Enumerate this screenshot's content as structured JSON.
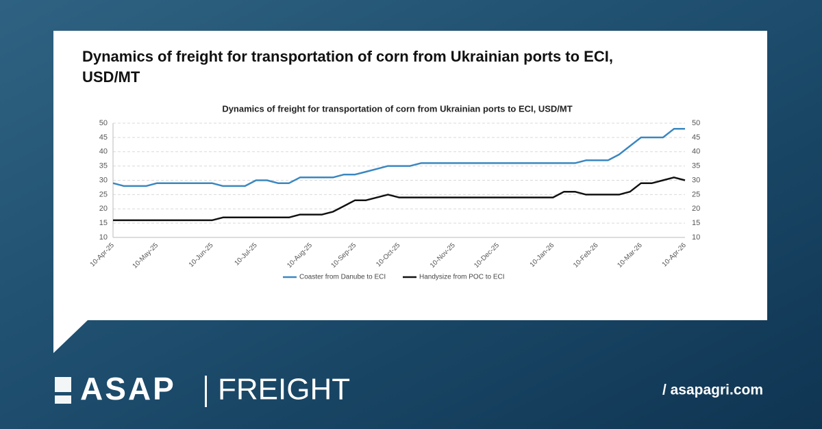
{
  "header": {
    "title": "Dynamics of freight for transportation of corn from Ukrainian ports to ECI, USD/MT"
  },
  "footer": {
    "brand": "ASAP",
    "division": "FREIGHT",
    "url": "/ asapagri.com"
  },
  "chart_data": {
    "type": "line",
    "title": "Dynamics of freight for transportation of corn from Ukrainian ports to ECI, USD/MT",
    "categories": [
      "10-Apr-25",
      null,
      null,
      null,
      "10-May-25",
      null,
      null,
      null,
      null,
      "10-Jun-25",
      null,
      null,
      null,
      "10-Jul-25",
      null,
      null,
      null,
      null,
      "10-Aug-25",
      null,
      null,
      null,
      "10-Sep-25",
      null,
      null,
      null,
      "10-Oct-25",
      null,
      null,
      null,
      null,
      "10-Nov-25",
      null,
      null,
      null,
      "10-Dec-25",
      null,
      null,
      null,
      null,
      "10-Jan-26",
      null,
      null,
      null,
      "10-Feb-26",
      null,
      null,
      null,
      "10-Mar-26",
      null,
      null,
      null,
      "10-Apr-26"
    ],
    "series": [
      {
        "name": "Coaster from Danube to ECI",
        "color": "#3a87c0",
        "values": [
          29,
          28,
          28,
          28,
          29,
          29,
          29,
          29,
          29,
          29,
          28,
          28,
          28,
          30,
          30,
          29,
          29,
          31,
          31,
          31,
          31,
          32,
          32,
          33,
          34,
          35,
          35,
          35,
          36,
          36,
          36,
          36,
          36,
          36,
          36,
          36,
          36,
          36,
          36,
          36,
          36,
          36,
          36,
          37,
          37,
          37,
          39,
          42,
          45,
          45,
          45,
          48,
          48
        ]
      },
      {
        "name": "Handysize from POC to ECI",
        "color": "#111111",
        "values": [
          16,
          16,
          16,
          16,
          16,
          16,
          16,
          16,
          16,
          16,
          17,
          17,
          17,
          17,
          17,
          17,
          17,
          18,
          18,
          18,
          19,
          21,
          23,
          23,
          24,
          25,
          24,
          24,
          24,
          24,
          24,
          24,
          24,
          24,
          24,
          24,
          24,
          24,
          24,
          24,
          24,
          26,
          26,
          25,
          25,
          25,
          25,
          26,
          29,
          29,
          30,
          31,
          30
        ]
      }
    ],
    "ylim": [
      10,
      50
    ],
    "yticks": [
      10,
      15,
      20,
      25,
      30,
      35,
      40,
      45,
      50
    ],
    "y2lim": [
      10,
      50
    ],
    "y2ticks": [
      10,
      15,
      20,
      25,
      30,
      35,
      40,
      45,
      50
    ],
    "grid": true,
    "legend": "bottom"
  }
}
